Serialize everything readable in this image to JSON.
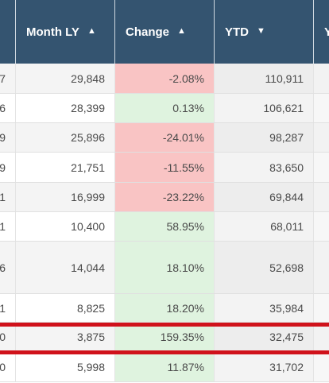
{
  "header": {
    "col0": "",
    "month_ly": "Month LY",
    "change": "Change",
    "ytd": "YTD",
    "col4": "Y"
  },
  "sort_icons": {
    "month_ly": "sort-ascending-icon",
    "change": "sort-ascending-icon",
    "ytd": "sort-descending-icon"
  },
  "rows": [
    {
      "c0": "7",
      "month_ly": "29,848",
      "change": "-2.08%",
      "ytd": "110,911",
      "status": "neg"
    },
    {
      "c0": "6",
      "month_ly": "28,399",
      "change": "0.13%",
      "ytd": "106,621",
      "status": "pos"
    },
    {
      "c0": "9",
      "month_ly": "25,896",
      "change": "-24.01%",
      "ytd": "98,287",
      "status": "neg"
    },
    {
      "c0": "9",
      "month_ly": "21,751",
      "change": "-11.55%",
      "ytd": "83,650",
      "status": "neg"
    },
    {
      "c0": "1",
      "month_ly": "16,999",
      "change": "-23.22%",
      "ytd": "69,844",
      "status": "neg"
    },
    {
      "c0": "1",
      "month_ly": "10,400",
      "change": "58.95%",
      "ytd": "68,011",
      "status": "pos"
    },
    {
      "c0": "6",
      "month_ly": "14,044",
      "change": "18.10%",
      "ytd": "52,698",
      "status": "pos"
    },
    {
      "c0": "1",
      "month_ly": "8,825",
      "change": "18.20%",
      "ytd": "35,984",
      "status": "pos"
    },
    {
      "c0": "0",
      "month_ly": "3,875",
      "change": "159.35%",
      "ytd": "32,475",
      "status": "pos"
    },
    {
      "c0": "0",
      "month_ly": "5,998",
      "change": "11.87%",
      "ytd": "31,702",
      "status": "pos"
    }
  ],
  "colors": {
    "header_bg": "#345470",
    "negative": "#f9c4c4",
    "positive": "#dff3df",
    "highlight": "#d0121b"
  }
}
